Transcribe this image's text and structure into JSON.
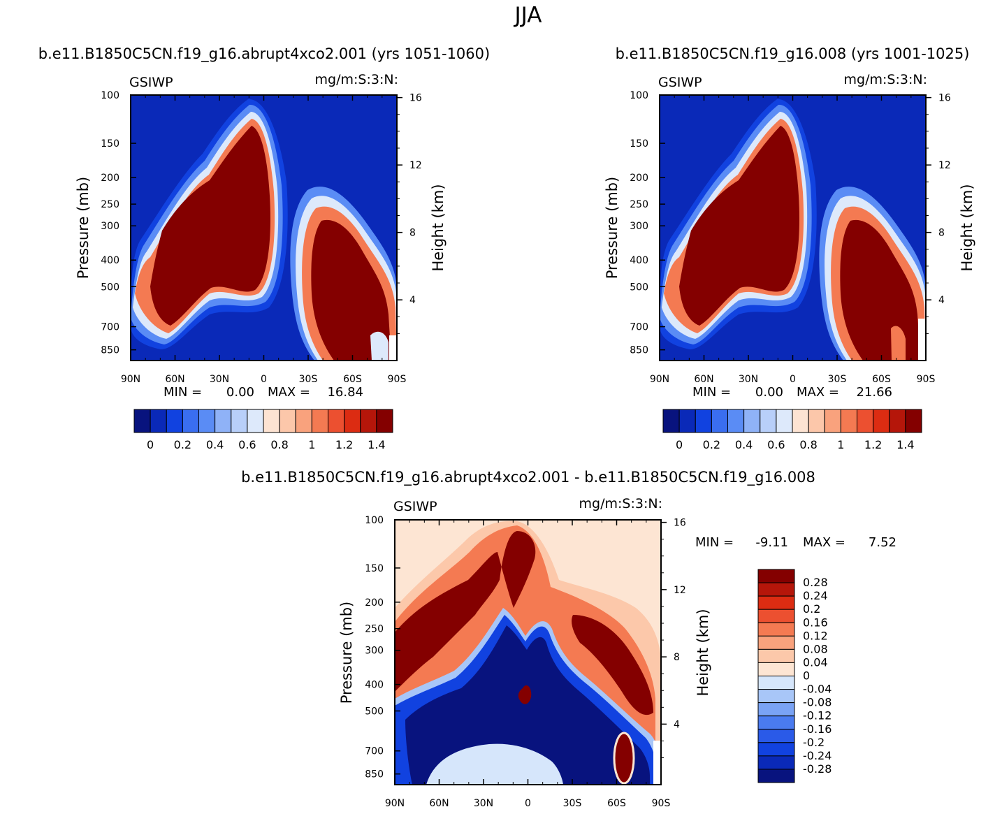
{
  "figure": {
    "title": "JJA",
    "variable": "GSIWP",
    "units": "mg/m:S:3:N:"
  },
  "colors": {
    "abs_palette": [
      "#08137e",
      "#0a29b8",
      "#1142e0",
      "#3a6ef0",
      "#5a8cf5",
      "#8fb2f7",
      "#b8cff9",
      "#dde9fb",
      "#fde3d2",
      "#fcc7aa",
      "#f9a27d",
      "#f47a52",
      "#ec5030",
      "#dc2c12",
      "#b5160a",
      "#840000"
    ],
    "diff_palette": [
      "#08137e",
      "#0a29b8",
      "#1142e0",
      "#2a5ae8",
      "#4a7bf0",
      "#7aa3f5",
      "#a8c6f8",
      "#d6e6fb",
      "#fde5d3",
      "#fcc8aa",
      "#f9a27d",
      "#f47a52",
      "#ec5030",
      "#dc2c12",
      "#b5160a",
      "#840000"
    ]
  },
  "chart_data": [
    {
      "type": "contour",
      "title": "b.e11.B1850C5CN.f19_g16.abrupt4xco2.001 (yrs 1051-1060)",
      "left_label": "GSIWP",
      "right_label": "mg/m:S:3:N:",
      "xlabel": "",
      "ylabel": "Pressure (mb)",
      "ylabel_right": "Height (km)",
      "x_ticks": [
        "90N",
        "60N",
        "30N",
        "0",
        "30S",
        "60S",
        "90S"
      ],
      "y_ticks": [
        "100",
        "150",
        "200",
        "250",
        "300",
        "400",
        "500",
        "700",
        "850"
      ],
      "y_tick_values": [
        100,
        150,
        200,
        250,
        300,
        400,
        500,
        700,
        850
      ],
      "y_right_ticks": [
        "16",
        "12",
        "8",
        "4"
      ],
      "y_right_tick_values": [
        16,
        12,
        8,
        4
      ],
      "ylim": [
        1000,
        100
      ],
      "xlim": [
        90,
        -90
      ],
      "min_label": "MIN =",
      "min_value": "0.00",
      "max_label": "MAX =",
      "max_value": "16.84",
      "colorbar_orientation": "horizontal",
      "colorbar_ticks": [
        "0",
        "0.2",
        "0.4",
        "0.6",
        "0.8",
        "1",
        "1.2",
        "1.4"
      ],
      "colorbar_levels": [
        0,
        0.1,
        0.2,
        0.3,
        0.4,
        0.5,
        0.6,
        0.7,
        0.8,
        0.9,
        1.0,
        1.1,
        1.2,
        1.3,
        1.4
      ]
    },
    {
      "type": "contour",
      "title": "b.e11.B1850C5CN.f19_g16.008 (yrs 1001-1025)",
      "left_label": "GSIWP",
      "right_label": "mg/m:S:3:N:",
      "xlabel": "",
      "ylabel": "Pressure (mb)",
      "ylabel_right": "Height (km)",
      "x_ticks": [
        "90N",
        "60N",
        "30N",
        "0",
        "30S",
        "60S",
        "90S"
      ],
      "y_ticks": [
        "100",
        "150",
        "200",
        "250",
        "300",
        "400",
        "500",
        "700",
        "850"
      ],
      "y_tick_values": [
        100,
        150,
        200,
        250,
        300,
        400,
        500,
        700,
        850
      ],
      "y_right_ticks": [
        "16",
        "12",
        "8",
        "4"
      ],
      "y_right_tick_values": [
        16,
        12,
        8,
        4
      ],
      "ylim": [
        1000,
        100
      ],
      "xlim": [
        90,
        -90
      ],
      "min_label": "MIN =",
      "min_value": "0.00",
      "max_label": "MAX =",
      "max_value": "21.66",
      "colorbar_orientation": "horizontal",
      "colorbar_ticks": [
        "0",
        "0.2",
        "0.4",
        "0.6",
        "0.8",
        "1",
        "1.2",
        "1.4"
      ],
      "colorbar_levels": [
        0,
        0.1,
        0.2,
        0.3,
        0.4,
        0.5,
        0.6,
        0.7,
        0.8,
        0.9,
        1.0,
        1.1,
        1.2,
        1.3,
        1.4
      ]
    },
    {
      "type": "contour",
      "title": "b.e11.B1850C5CN.f19_g16.abrupt4xco2.001 - b.e11.B1850C5CN.f19_g16.008",
      "left_label": "GSIWP",
      "right_label": "mg/m:S:3:N:",
      "xlabel": "",
      "ylabel": "Pressure (mb)",
      "ylabel_right": "Height (km)",
      "x_ticks": [
        "90N",
        "60N",
        "30N",
        "0",
        "30S",
        "60S",
        "90S"
      ],
      "y_ticks": [
        "100",
        "150",
        "200",
        "250",
        "300",
        "400",
        "500",
        "700",
        "850"
      ],
      "y_tick_values": [
        100,
        150,
        200,
        250,
        300,
        400,
        500,
        700,
        850
      ],
      "y_right_ticks": [
        "16",
        "12",
        "8",
        "4"
      ],
      "y_right_tick_values": [
        16,
        12,
        8,
        4
      ],
      "ylim": [
        1000,
        100
      ],
      "xlim": [
        90,
        -90
      ],
      "min_label": "MIN =",
      "min_value": "-9.11",
      "max_label": "MAX =",
      "max_value": "7.52",
      "colorbar_orientation": "vertical",
      "colorbar_ticks": [
        "0.28",
        "0.24",
        "0.2",
        "0.16",
        "0.12",
        "0.08",
        "0.04",
        "0",
        "-0.04",
        "-0.08",
        "-0.12",
        "-0.16",
        "-0.2",
        "-0.24",
        "-0.28"
      ],
      "colorbar_levels": [
        -0.28,
        -0.24,
        -0.2,
        -0.16,
        -0.12,
        -0.08,
        -0.04,
        0,
        0.04,
        0.08,
        0.12,
        0.16,
        0.2,
        0.24,
        0.28
      ]
    }
  ]
}
